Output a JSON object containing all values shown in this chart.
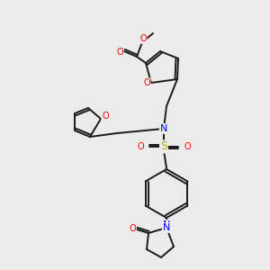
{
  "background_color": "#ebebeb",
  "bond_color": "#1a1a1a",
  "atom_colors": {
    "O": "#ff0000",
    "N": "#0000ee",
    "S": "#bbaa00",
    "C": "#1a1a1a"
  },
  "figsize": [
    3.0,
    3.0
  ],
  "dpi": 100
}
